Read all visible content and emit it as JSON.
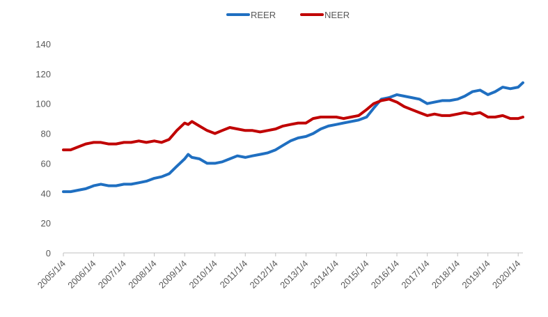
{
  "chart_data": {
    "type": "line",
    "title": "",
    "xlabel": "",
    "ylabel": "",
    "ylim": [
      0,
      140
    ],
    "yticks": [
      "0",
      "20",
      "40",
      "60",
      "80",
      "100",
      "120",
      "140"
    ],
    "xticks": [
      "2005/1/4",
      "2006/1/4",
      "2007/1/4",
      "2008/1/4",
      "2009/1/4",
      "2010/1/4",
      "2011/1/4",
      "2012/1/4",
      "2013/1/4",
      "2014/1/4",
      "2015/1/4",
      "2016/1/4",
      "2017/1/4",
      "2018/1/4",
      "2019/1/4",
      "2020/1/4"
    ],
    "xrange": [
      "2005-01-04",
      "2020-03-01"
    ],
    "grid": false,
    "legend_position": "top-center",
    "series": [
      {
        "name": "REER",
        "color": "#1f6fc1",
        "points": [
          [
            "2005-01-04",
            41
          ],
          [
            "2005-04-01",
            41
          ],
          [
            "2005-07-01",
            42
          ],
          [
            "2005-10-01",
            43
          ],
          [
            "2006-01-04",
            45
          ],
          [
            "2006-04-01",
            46
          ],
          [
            "2006-07-01",
            45
          ],
          [
            "2006-10-01",
            45
          ],
          [
            "2007-01-04",
            46
          ],
          [
            "2007-04-01",
            46
          ],
          [
            "2007-07-01",
            47
          ],
          [
            "2007-10-01",
            48
          ],
          [
            "2008-01-04",
            50
          ],
          [
            "2008-04-01",
            51
          ],
          [
            "2008-07-01",
            53
          ],
          [
            "2008-10-01",
            58
          ],
          [
            "2009-01-04",
            63
          ],
          [
            "2009-02-15",
            66
          ],
          [
            "2009-04-01",
            64
          ],
          [
            "2009-07-01",
            63
          ],
          [
            "2009-10-01",
            60
          ],
          [
            "2010-01-04",
            60
          ],
          [
            "2010-04-01",
            61
          ],
          [
            "2010-07-01",
            63
          ],
          [
            "2010-10-01",
            65
          ],
          [
            "2011-01-04",
            64
          ],
          [
            "2011-04-01",
            65
          ],
          [
            "2011-07-01",
            66
          ],
          [
            "2011-10-01",
            67
          ],
          [
            "2012-01-04",
            69
          ],
          [
            "2012-04-01",
            72
          ],
          [
            "2012-07-01",
            75
          ],
          [
            "2012-10-01",
            77
          ],
          [
            "2013-01-04",
            78
          ],
          [
            "2013-04-01",
            80
          ],
          [
            "2013-07-01",
            83
          ],
          [
            "2013-10-01",
            85
          ],
          [
            "2014-01-04",
            86
          ],
          [
            "2014-04-01",
            87
          ],
          [
            "2014-07-01",
            88
          ],
          [
            "2014-10-01",
            89
          ],
          [
            "2015-01-04",
            91
          ],
          [
            "2015-04-01",
            97
          ],
          [
            "2015-07-01",
            103
          ],
          [
            "2015-10-01",
            104
          ],
          [
            "2016-01-04",
            106
          ],
          [
            "2016-04-01",
            105
          ],
          [
            "2016-07-01",
            104
          ],
          [
            "2016-10-01",
            103
          ],
          [
            "2017-01-04",
            100
          ],
          [
            "2017-04-01",
            101
          ],
          [
            "2017-07-01",
            102
          ],
          [
            "2017-10-01",
            102
          ],
          [
            "2018-01-04",
            103
          ],
          [
            "2018-04-01",
            105
          ],
          [
            "2018-07-01",
            108
          ],
          [
            "2018-10-01",
            109
          ],
          [
            "2019-01-04",
            106
          ],
          [
            "2019-04-01",
            108
          ],
          [
            "2019-07-01",
            111
          ],
          [
            "2019-10-01",
            110
          ],
          [
            "2020-01-04",
            111
          ],
          [
            "2020-03-01",
            114
          ]
        ]
      },
      {
        "name": "NEER",
        "color": "#c00000",
        "points": [
          [
            "2005-01-04",
            69
          ],
          [
            "2005-04-01",
            69
          ],
          [
            "2005-07-01",
            71
          ],
          [
            "2005-10-01",
            73
          ],
          [
            "2006-01-04",
            74
          ],
          [
            "2006-04-01",
            74
          ],
          [
            "2006-07-01",
            73
          ],
          [
            "2006-10-01",
            73
          ],
          [
            "2007-01-04",
            74
          ],
          [
            "2007-04-01",
            74
          ],
          [
            "2007-07-01",
            75
          ],
          [
            "2007-10-01",
            74
          ],
          [
            "2008-01-04",
            75
          ],
          [
            "2008-04-01",
            74
          ],
          [
            "2008-07-01",
            76
          ],
          [
            "2008-10-01",
            82
          ],
          [
            "2009-01-04",
            87
          ],
          [
            "2009-02-15",
            86
          ],
          [
            "2009-04-01",
            88
          ],
          [
            "2009-07-01",
            85
          ],
          [
            "2009-10-01",
            82
          ],
          [
            "2010-01-04",
            80
          ],
          [
            "2010-04-01",
            82
          ],
          [
            "2010-07-01",
            84
          ],
          [
            "2010-10-01",
            83
          ],
          [
            "2011-01-04",
            82
          ],
          [
            "2011-04-01",
            82
          ],
          [
            "2011-07-01",
            81
          ],
          [
            "2011-10-01",
            82
          ],
          [
            "2012-01-04",
            83
          ],
          [
            "2012-04-01",
            85
          ],
          [
            "2012-07-01",
            86
          ],
          [
            "2012-10-01",
            87
          ],
          [
            "2013-01-04",
            87
          ],
          [
            "2013-04-01",
            90
          ],
          [
            "2013-07-01",
            91
          ],
          [
            "2013-10-01",
            91
          ],
          [
            "2014-01-04",
            91
          ],
          [
            "2014-04-01",
            90
          ],
          [
            "2014-07-01",
            91
          ],
          [
            "2014-10-01",
            92
          ],
          [
            "2015-01-04",
            96
          ],
          [
            "2015-04-01",
            100
          ],
          [
            "2015-07-01",
            102
          ],
          [
            "2015-10-01",
            103
          ],
          [
            "2016-01-04",
            101
          ],
          [
            "2016-04-01",
            98
          ],
          [
            "2016-07-01",
            96
          ],
          [
            "2016-10-01",
            94
          ],
          [
            "2017-01-04",
            92
          ],
          [
            "2017-04-01",
            93
          ],
          [
            "2017-07-01",
            92
          ],
          [
            "2017-10-01",
            92
          ],
          [
            "2018-01-04",
            93
          ],
          [
            "2018-04-01",
            94
          ],
          [
            "2018-07-01",
            93
          ],
          [
            "2018-10-01",
            94
          ],
          [
            "2019-01-04",
            91
          ],
          [
            "2019-04-01",
            91
          ],
          [
            "2019-07-01",
            92
          ],
          [
            "2019-10-01",
            90
          ],
          [
            "2020-01-04",
            90
          ],
          [
            "2020-03-01",
            91
          ]
        ]
      }
    ]
  }
}
